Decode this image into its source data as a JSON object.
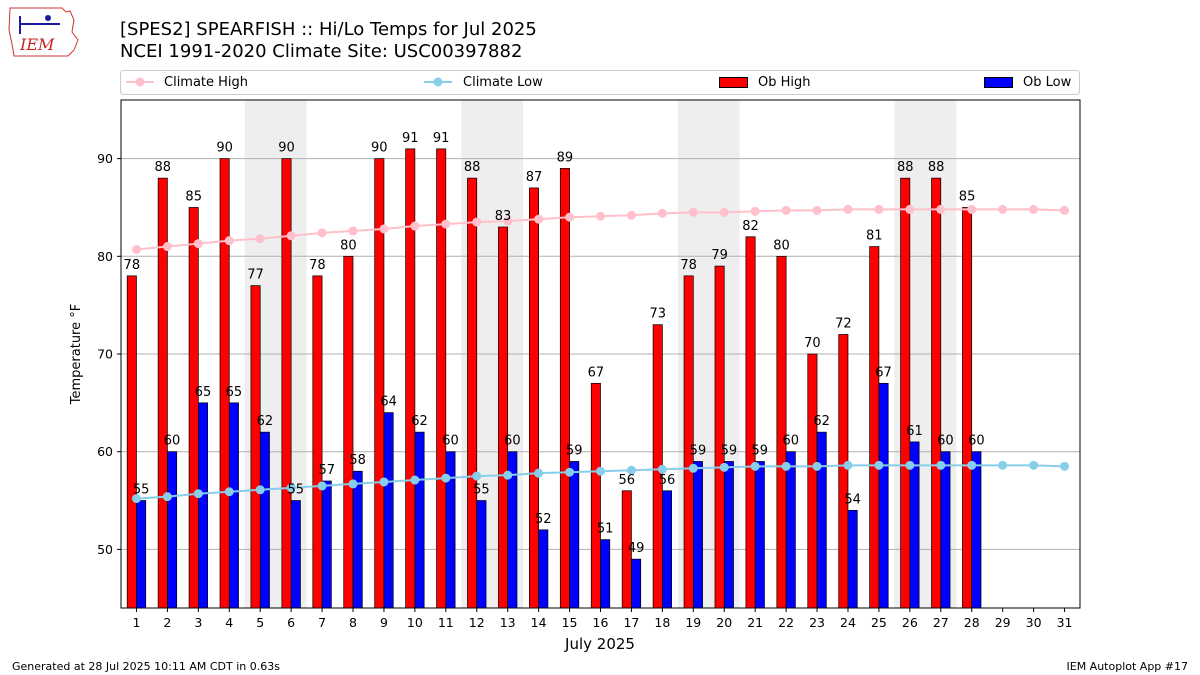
{
  "header": {
    "title_line1": "[SPES2] SPEARFISH :: Hi/Lo Temps for Jul 2025",
    "title_line2": "NCEI 1991-2020 Climate Site: USC00397882",
    "logo_text": "IEM"
  },
  "footer": {
    "generated": "Generated at 28 Jul 2025 10:11 AM CDT in 0.63s",
    "app": "IEM Autoplot App #17"
  },
  "chart_data": {
    "type": "bar",
    "xlabel": "July 2025",
    "ylabel": "Temperature °F",
    "ylim": [
      44,
      96
    ],
    "xlim": [
      0.5,
      31.5
    ],
    "yticks": [
      50,
      60,
      70,
      80,
      90
    ],
    "grid": "horizontal",
    "legend": [
      "Climate High",
      "Climate Low",
      "Ob High",
      "Ob Low"
    ],
    "legend_placement": "top",
    "weekend_shading": [
      [
        5,
        6
      ],
      [
        12,
        13
      ],
      [
        19,
        20
      ],
      [
        26,
        27
      ]
    ],
    "days": [
      1,
      2,
      3,
      4,
      5,
      6,
      7,
      8,
      9,
      10,
      11,
      12,
      13,
      14,
      15,
      16,
      17,
      18,
      19,
      20,
      21,
      22,
      23,
      24,
      25,
      26,
      27,
      28,
      29,
      30,
      31
    ],
    "ob_high": [
      78,
      88,
      85,
      90,
      77,
      90,
      78,
      80,
      90,
      91,
      91,
      88,
      83,
      87,
      89,
      67,
      56,
      73,
      78,
      79,
      82,
      80,
      70,
      72,
      81,
      88,
      88,
      85
    ],
    "ob_low": [
      55,
      60,
      65,
      65,
      62,
      55,
      57,
      58,
      64,
      62,
      60,
      55,
      60,
      52,
      59,
      51,
      49,
      56,
      59,
      59,
      59,
      60,
      62,
      54,
      67,
      61,
      60,
      60
    ],
    "climate_high": [
      80.7,
      81.0,
      81.3,
      81.6,
      81.8,
      82.1,
      82.4,
      82.6,
      82.8,
      83.1,
      83.3,
      83.5,
      83.6,
      83.8,
      84.0,
      84.1,
      84.2,
      84.4,
      84.5,
      84.5,
      84.6,
      84.7,
      84.7,
      84.8,
      84.8,
      84.8,
      84.8,
      84.8,
      84.8,
      84.8,
      84.7
    ],
    "climate_low": [
      55.2,
      55.4,
      55.7,
      55.9,
      56.1,
      56.3,
      56.5,
      56.7,
      56.9,
      57.1,
      57.3,
      57.5,
      57.6,
      57.8,
      57.9,
      58.0,
      58.1,
      58.2,
      58.3,
      58.4,
      58.5,
      58.5,
      58.5,
      58.6,
      58.6,
      58.6,
      58.6,
      58.6,
      58.6,
      58.6,
      58.5
    ],
    "colors": {
      "ob_high": "#ff0000",
      "ob_low": "#0000ff",
      "climate_high": "#ffc0cb",
      "climate_low": "#87ceeb",
      "weekend": "#eeeeee",
      "grid": "#b0b0b0"
    }
  }
}
